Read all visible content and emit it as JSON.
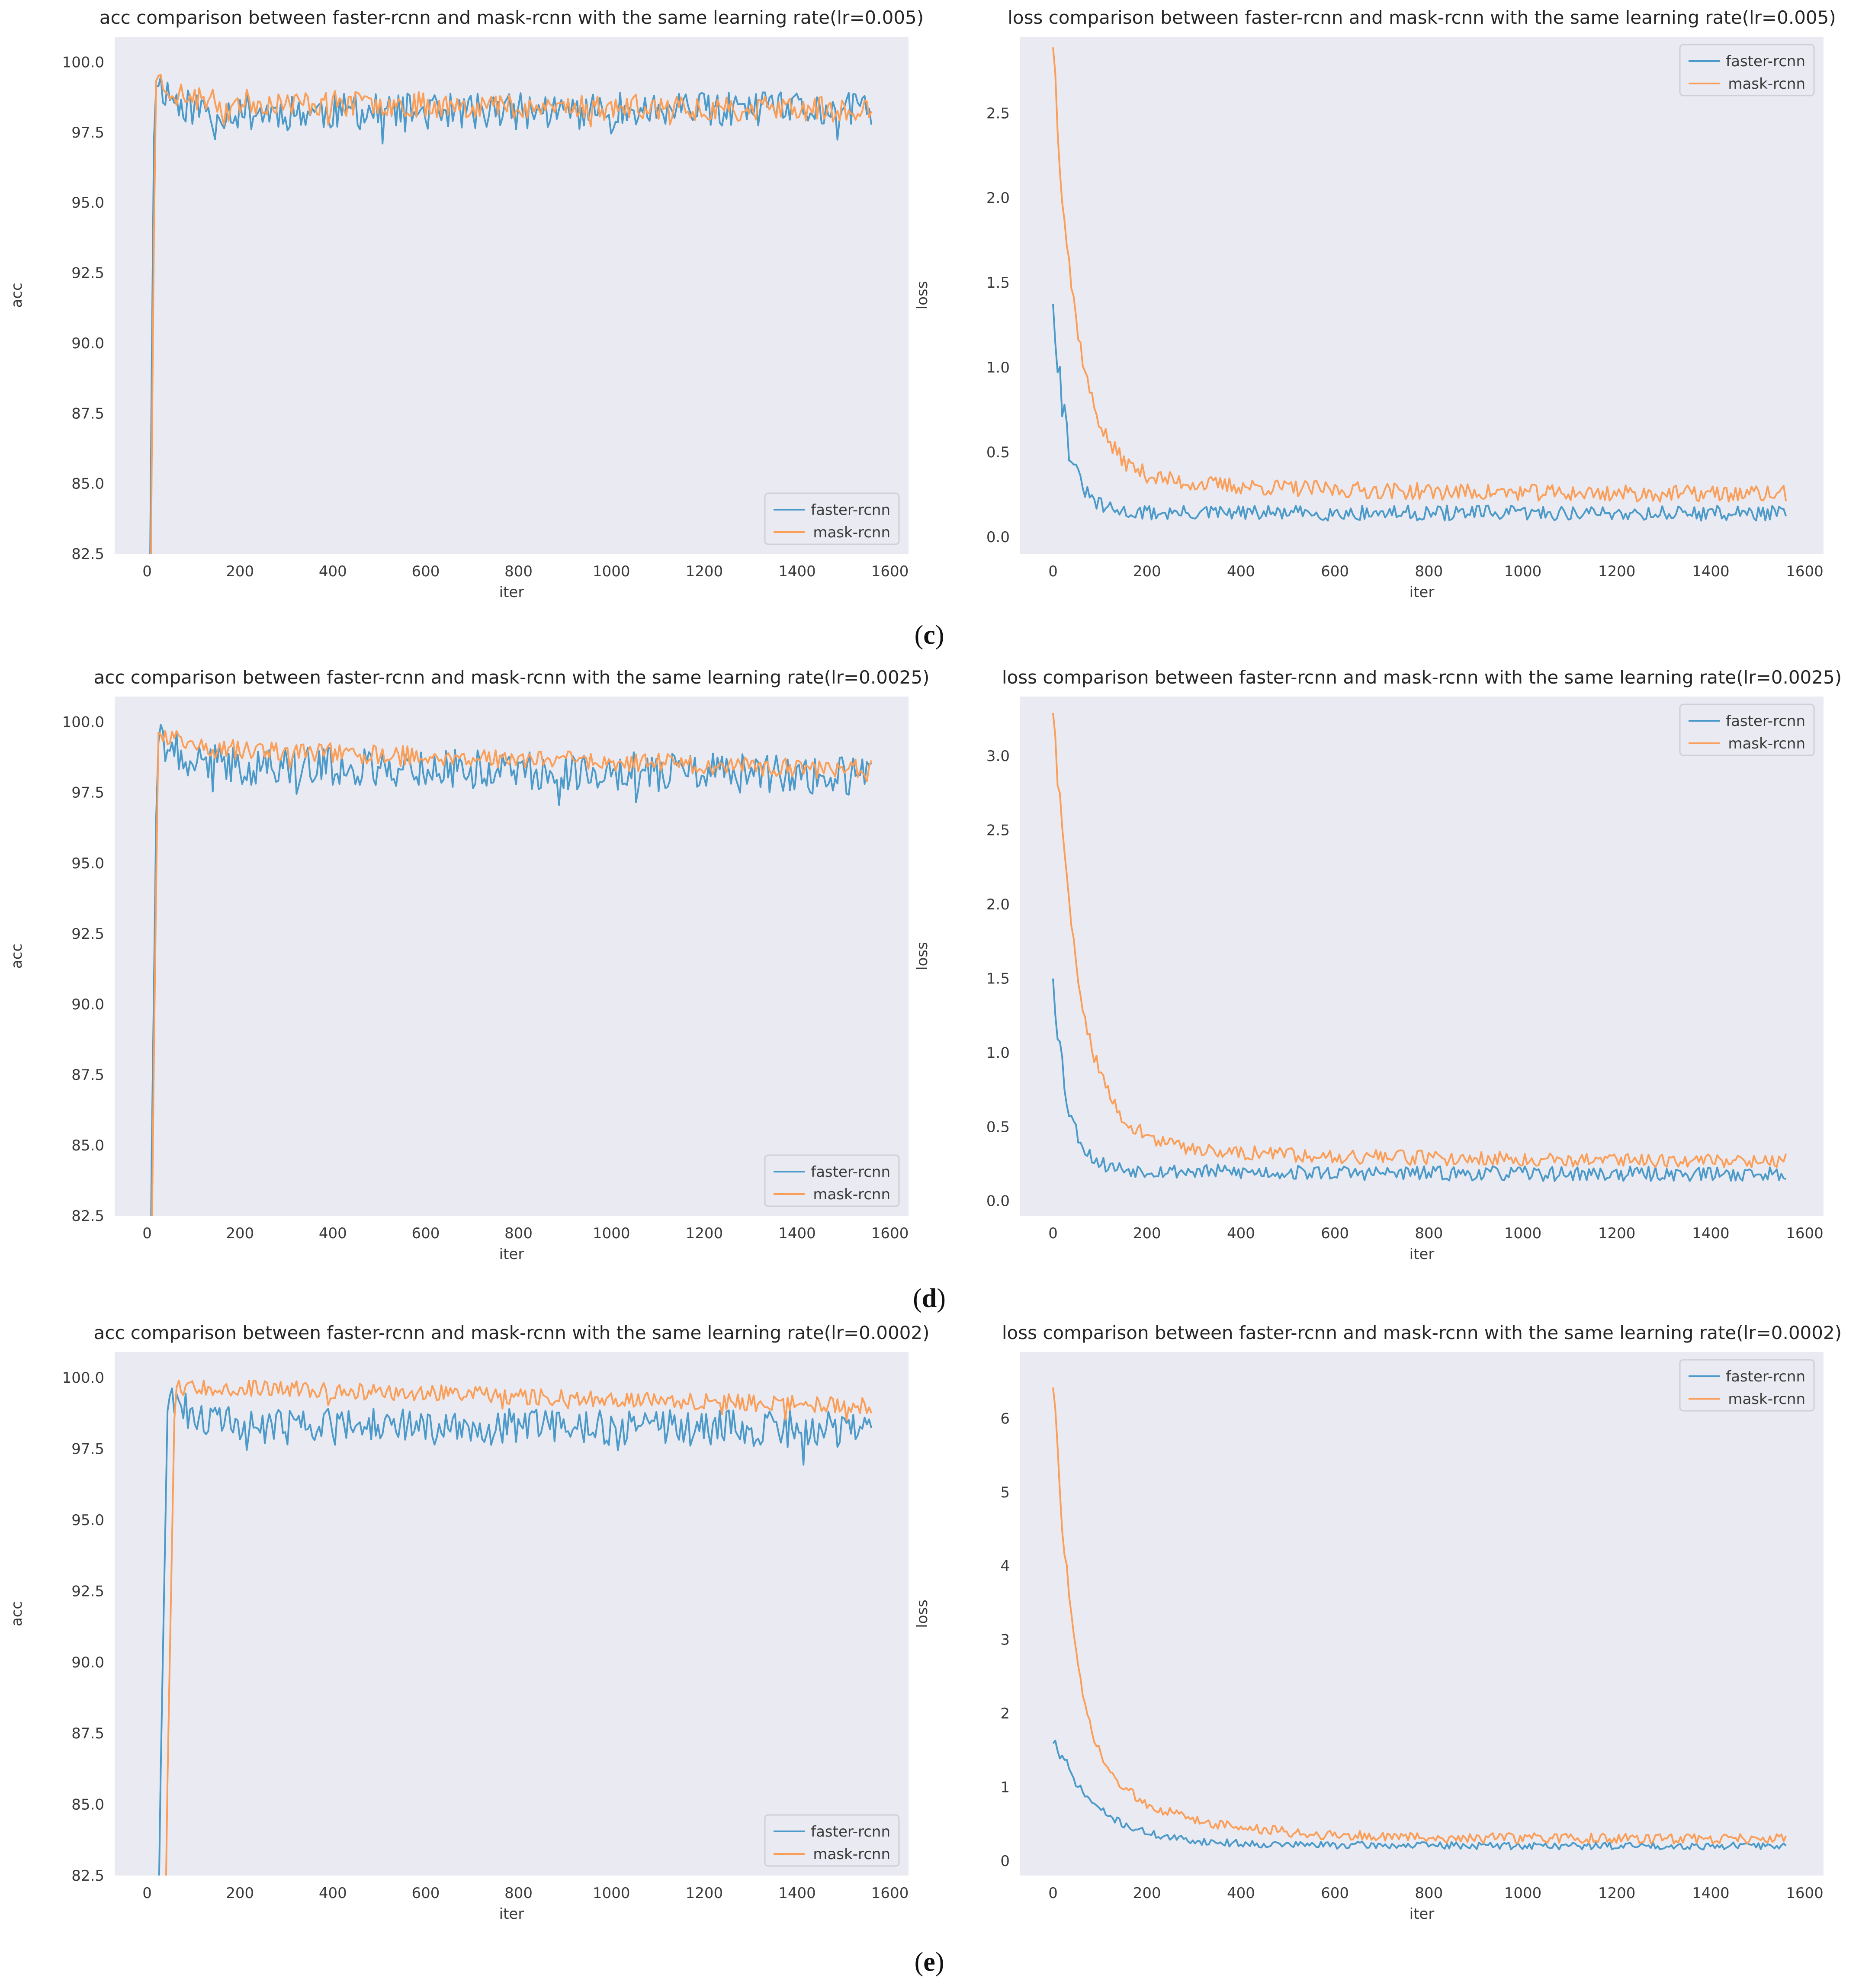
{
  "colors": {
    "faster": "#4c9ac9",
    "mask": "#fb9e58",
    "plot_bg": "#e9eaf2",
    "legend_border": "#cfcfd6"
  },
  "row_labels": [
    {
      "open": "(",
      "letter": "c",
      "close": ")"
    },
    {
      "open": "(",
      "letter": "d",
      "close": ")"
    },
    {
      "open": "(",
      "letter": "e",
      "close": ")"
    }
  ],
  "chart_data": [
    {
      "type": "line",
      "title": "acc comparison between faster-rcnn and mask-rcnn with the same learning rate(lr=0.005)",
      "xlabel": "iter",
      "ylabel": "acc",
      "xlim": [
        -70,
        1640
      ],
      "ylim": [
        82.5,
        100.9
      ],
      "xticks": [
        0,
        200,
        400,
        600,
        800,
        1000,
        1200,
        1400,
        1600
      ],
      "yticks": [
        82.5,
        85.0,
        87.5,
        90.0,
        92.5,
        95.0,
        97.5,
        100.0
      ],
      "ytick_labels": [
        "82.5",
        "85.0",
        "87.5",
        "90.0",
        "92.5",
        "95.0",
        "97.5",
        "100.0"
      ],
      "legend_loc": "lower right",
      "series": [
        {
          "name": "faster-rcnn",
          "color": "#4c9ac9",
          "gen": {
            "kind": "acc",
            "start": 6,
            "peak_at": 16,
            "peak": 99.6,
            "level_start": 98.2,
            "level_end": 98.3,
            "noise": 0.65,
            "seed": 11,
            "n": 320,
            "end": 1560
          }
        },
        {
          "name": "mask-rcnn",
          "color": "#fb9e58",
          "gen": {
            "kind": "acc",
            "start": 8,
            "peak_at": 18,
            "peak": 99.6,
            "level_start": 98.6,
            "level_end": 98.3,
            "noise": 0.45,
            "seed": 23,
            "n": 320,
            "end": 1560
          }
        }
      ]
    },
    {
      "type": "line",
      "title": "loss comparison between faster-rcnn and mask-rcnn with the same learning rate(lr=0.005)",
      "xlabel": "iter",
      "ylabel": "loss",
      "xlim": [
        -70,
        1640
      ],
      "ylim": [
        -0.1,
        2.95
      ],
      "xticks": [
        0,
        200,
        400,
        600,
        800,
        1000,
        1200,
        1400,
        1600
      ],
      "yticks": [
        0.0,
        0.5,
        1.0,
        1.5,
        2.0,
        2.5
      ],
      "ytick_labels": [
        "0.0",
        "0.5",
        "1.0",
        "1.5",
        "2.0",
        "2.5"
      ],
      "legend_loc": "upper right",
      "series": [
        {
          "name": "faster-rcnn",
          "color": "#4c9ac9",
          "gen": {
            "kind": "loss",
            "start_val": 1.43,
            "floor": 0.14,
            "tau": 30,
            "tail": 0.0,
            "noise": 0.045,
            "seed": 31,
            "n": 320,
            "end": 1560
          }
        },
        {
          "name": "mask-rcnn",
          "color": "#fb9e58",
          "gen": {
            "kind": "loss",
            "start_val": 2.82,
            "floor": 0.25,
            "tau": 48,
            "tail": 0.13,
            "noise": 0.05,
            "seed": 37,
            "n": 320,
            "end": 1560
          }
        }
      ]
    },
    {
      "type": "line",
      "title": "acc comparison between faster-rcnn and mask-rcnn with the same learning rate(lr=0.0025)",
      "xlabel": "iter",
      "ylabel": "acc",
      "xlim": [
        -70,
        1640
      ],
      "ylim": [
        82.5,
        100.9
      ],
      "xticks": [
        0,
        200,
        400,
        600,
        800,
        1000,
        1200,
        1400,
        1600
      ],
      "yticks": [
        82.5,
        85.0,
        87.5,
        90.0,
        92.5,
        95.0,
        97.5,
        100.0
      ],
      "ytick_labels": [
        "82.5",
        "85.0",
        "87.5",
        "90.0",
        "92.5",
        "95.0",
        "97.5",
        "100.0"
      ],
      "legend_loc": "lower right",
      "series": [
        {
          "name": "faster-rcnn",
          "color": "#4c9ac9",
          "gen": {
            "kind": "acc",
            "start": 8,
            "peak_at": 22,
            "peak": 99.7,
            "level_start": 98.5,
            "level_end": 98.1,
            "noise": 0.7,
            "seed": 41,
            "n": 320,
            "end": 1560
          }
        },
        {
          "name": "mask-rcnn",
          "color": "#fb9e58",
          "gen": {
            "kind": "acc",
            "start": 10,
            "peak_at": 24,
            "peak": 99.8,
            "level_start": 99.1,
            "level_end": 98.3,
            "noise": 0.35,
            "seed": 43,
            "n": 320,
            "end": 1560
          }
        }
      ]
    },
    {
      "type": "line",
      "title": "loss comparison between faster-rcnn and mask-rcnn with the same learning rate(lr=0.0025)",
      "xlabel": "iter",
      "ylabel": "loss",
      "xlim": [
        -70,
        1640
      ],
      "ylim": [
        -0.1,
        3.4
      ],
      "xticks": [
        0,
        200,
        400,
        600,
        800,
        1000,
        1200,
        1400,
        1600
      ],
      "yticks": [
        0.0,
        0.5,
        1.0,
        1.5,
        2.0,
        2.5,
        3.0
      ],
      "ytick_labels": [
        "0.0",
        "0.5",
        "1.0",
        "1.5",
        "2.0",
        "2.5",
        "3.0"
      ],
      "legend_loc": "upper right",
      "series": [
        {
          "name": "faster-rcnn",
          "color": "#4c9ac9",
          "gen": {
            "kind": "loss",
            "start_val": 1.52,
            "floor": 0.18,
            "tau": 30,
            "tail": 0.04,
            "noise": 0.05,
            "seed": 53,
            "n": 320,
            "end": 1560
          }
        },
        {
          "name": "mask-rcnn",
          "color": "#fb9e58",
          "gen": {
            "kind": "loss",
            "start_val": 3.2,
            "floor": 0.27,
            "tau": 55,
            "tail": 0.15,
            "noise": 0.05,
            "seed": 59,
            "n": 320,
            "end": 1560
          }
        }
      ]
    },
    {
      "type": "line",
      "title": "acc comparison between faster-rcnn and mask-rcnn with the same learning rate(lr=0.0002)",
      "xlabel": "iter",
      "ylabel": "acc",
      "xlim": [
        -70,
        1640
      ],
      "ylim": [
        82.5,
        100.9
      ],
      "xticks": [
        0,
        200,
        400,
        600,
        800,
        1000,
        1200,
        1400,
        1600
      ],
      "yticks": [
        82.5,
        85.0,
        87.5,
        90.0,
        92.5,
        95.0,
        97.5,
        100.0
      ],
      "ytick_labels": [
        "82.5",
        "85.0",
        "87.5",
        "90.0",
        "92.5",
        "95.0",
        "97.5",
        "100.0"
      ],
      "legend_loc": "lower right",
      "series": [
        {
          "name": "faster-rcnn",
          "color": "#4c9ac9",
          "gen": {
            "kind": "acc",
            "start": 25,
            "peak_at": 45,
            "peak": 99.8,
            "level_start": 98.3,
            "level_end": 98.2,
            "noise": 0.65,
            "seed": 61,
            "n": 320,
            "end": 1560
          }
        },
        {
          "name": "mask-rcnn",
          "color": "#fb9e58",
          "gen": {
            "kind": "acc",
            "start": 40,
            "peak_at": 60,
            "peak": 99.8,
            "level_start": 99.7,
            "level_end": 99.0,
            "noise": 0.3,
            "seed": 67,
            "n": 320,
            "end": 1560
          }
        }
      ]
    },
    {
      "type": "line",
      "title": "loss comparison between faster-rcnn and mask-rcnn with the same learning rate(lr=0.0002)",
      "xlabel": "iter",
      "ylabel": "loss",
      "xlim": [
        -70,
        1640
      ],
      "ylim": [
        -0.2,
        6.9
      ],
      "xticks": [
        0,
        200,
        400,
        600,
        800,
        1000,
        1200,
        1400,
        1600
      ],
      "yticks": [
        0,
        1,
        2,
        3,
        4,
        5,
        6
      ],
      "ytick_labels": [
        "0",
        "1",
        "2",
        "3",
        "4",
        "5",
        "6"
      ],
      "legend_loc": "upper right",
      "series": [
        {
          "name": "faster-rcnn",
          "color": "#4c9ac9",
          "gen": {
            "kind": "loss",
            "start_val": 1.6,
            "floor": 0.2,
            "tau": 90,
            "tail": 0.05,
            "noise": 0.05,
            "seed": 71,
            "n": 320,
            "end": 1560
          }
        },
        {
          "name": "mask-rcnn",
          "color": "#fb9e58",
          "gen": {
            "kind": "loss",
            "start_val": 6.5,
            "floor": 0.3,
            "tau": 35,
            "tail": 0.0,
            "noise": 0.07,
            "seed": 73,
            "n": 320,
            "end": 1560,
            "mid": 1.4,
            "mid_tau": 180
          }
        }
      ]
    }
  ]
}
